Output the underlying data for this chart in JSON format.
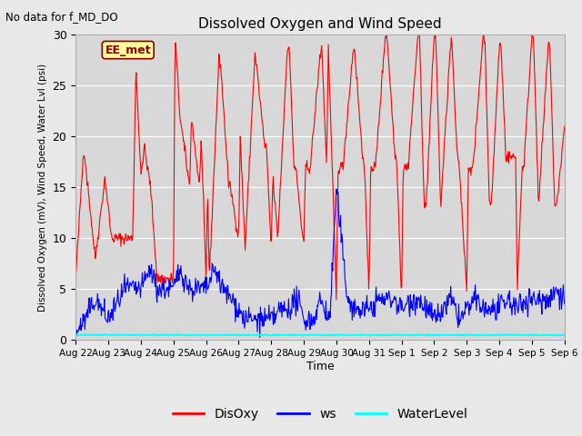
{
  "title": "Dissolved Oxygen and Wind Speed",
  "ylabel": "Dissolved Oxygen (mV), Wind Speed, Water Lvl (psi)",
  "xlabel": "Time",
  "top_left_text": "No data for f_MD_DO",
  "box_label": "EE_met",
  "ylim": [
    0,
    30
  ],
  "fig_facecolor": "#e8e8e8",
  "plot_bg_color": "#d8d8d8",
  "legend_labels": [
    "DisOxy",
    "ws",
    "WaterLevel"
  ],
  "legend_colors": [
    "red",
    "blue",
    "cyan"
  ],
  "x_tick_labels": [
    "Aug 22",
    "Aug 23",
    "Aug 24",
    "Aug 25",
    "Aug 26",
    "Aug 27",
    "Aug 28",
    "Aug 29",
    "Aug 30",
    "Aug 31",
    "Sep 1",
    "Sep 2",
    "Sep 3",
    "Sep 4",
    "Sep 5",
    "Sep 6"
  ],
  "n_points": 800,
  "water_level_value": 0.5,
  "disoxy_key_x": [
    0,
    0.25,
    0.6,
    0.9,
    1.1,
    1.4,
    1.6,
    1.75,
    1.85,
    2.0,
    2.1,
    2.3,
    2.5,
    2.8,
    3.0,
    3.05,
    3.2,
    3.5,
    3.55,
    3.8,
    3.85,
    4.0,
    4.05,
    4.1,
    4.4,
    4.45,
    4.7,
    4.75,
    5.0,
    5.05,
    5.2,
    5.5,
    5.55,
    5.8,
    5.85,
    6.0,
    6.05,
    6.2,
    6.5,
    6.55,
    6.7,
    6.75,
    7.0,
    7.05,
    7.2,
    7.5,
    7.55,
    7.7,
    7.75,
    8.0,
    8.05,
    8.2,
    8.5,
    8.55,
    8.8,
    8.85,
    9.0,
    9.05,
    9.2,
    9.5,
    9.55,
    9.8,
    9.85,
    10.0,
    10.05,
    10.2,
    10.5,
    10.55,
    10.7,
    10.75,
    11.0,
    11.05,
    11.2,
    11.5,
    11.55,
    11.7,
    11.75,
    12.0,
    12.05,
    12.2,
    12.5,
    12.55,
    12.7,
    12.75,
    13.0,
    13.05,
    13.2,
    13.5,
    13.55,
    13.7,
    13.75,
    14.0,
    14.05,
    14.2,
    14.5,
    14.55,
    14.7,
    14.75,
    15.0
  ],
  "disoxy_key_y": [
    6,
    19,
    8,
    16,
    10,
    10,
    10,
    10,
    27,
    16,
    19,
    15,
    6,
    6,
    6,
    30,
    22,
    15,
    22,
    15,
    20,
    6,
    15,
    6,
    28,
    27,
    15,
    15,
    10,
    20,
    9,
    28,
    27,
    19,
    19,
    9,
    16,
    10,
    29,
    29,
    17,
    17,
    9,
    17,
    17,
    28,
    29,
    17,
    29,
    4,
    17,
    17,
    28,
    29,
    18,
    18,
    4,
    17,
    17,
    30,
    30,
    18,
    18,
    4,
    17,
    17,
    30,
    30,
    13,
    13,
    30,
    30,
    13,
    29,
    29,
    18,
    18,
    5,
    17,
    17,
    30,
    30,
    13,
    13,
    29,
    29,
    18,
    18,
    5,
    17,
    17,
    30,
    30,
    13,
    29,
    29,
    13,
    13,
    21
  ],
  "ws_key_x": [
    0,
    0.3,
    0.6,
    1.0,
    1.5,
    2.0,
    2.3,
    2.5,
    3.0,
    3.2,
    3.5,
    4.0,
    4.3,
    4.5,
    4.8,
    5.0,
    5.2,
    5.5,
    6.0,
    6.3,
    6.5,
    6.8,
    7.0,
    7.3,
    7.5,
    7.8,
    8.0,
    8.3,
    8.5,
    8.8,
    9.0,
    9.3,
    9.5,
    9.8,
    10.0,
    10.3,
    10.5,
    10.8,
    11.0,
    11.3,
    11.5,
    11.8,
    12.0,
    12.3,
    12.5,
    12.8,
    13.0,
    13.3,
    13.5,
    13.8,
    14.0,
    14.3,
    14.5,
    14.8,
    15.0
  ],
  "ws_key_y": [
    0.8,
    2,
    4,
    2,
    5,
    5,
    7,
    5,
    5,
    7,
    5,
    5,
    7,
    5,
    4,
    3,
    2,
    2,
    2,
    3,
    3,
    4,
    2,
    2,
    4,
    2,
    15,
    5,
    3,
    3,
    3,
    4,
    4,
    4,
    3,
    4,
    4,
    3,
    2,
    3,
    4,
    2,
    3,
    4,
    3,
    3,
    3,
    4,
    3,
    4,
    4,
    4,
    4,
    5,
    4
  ]
}
